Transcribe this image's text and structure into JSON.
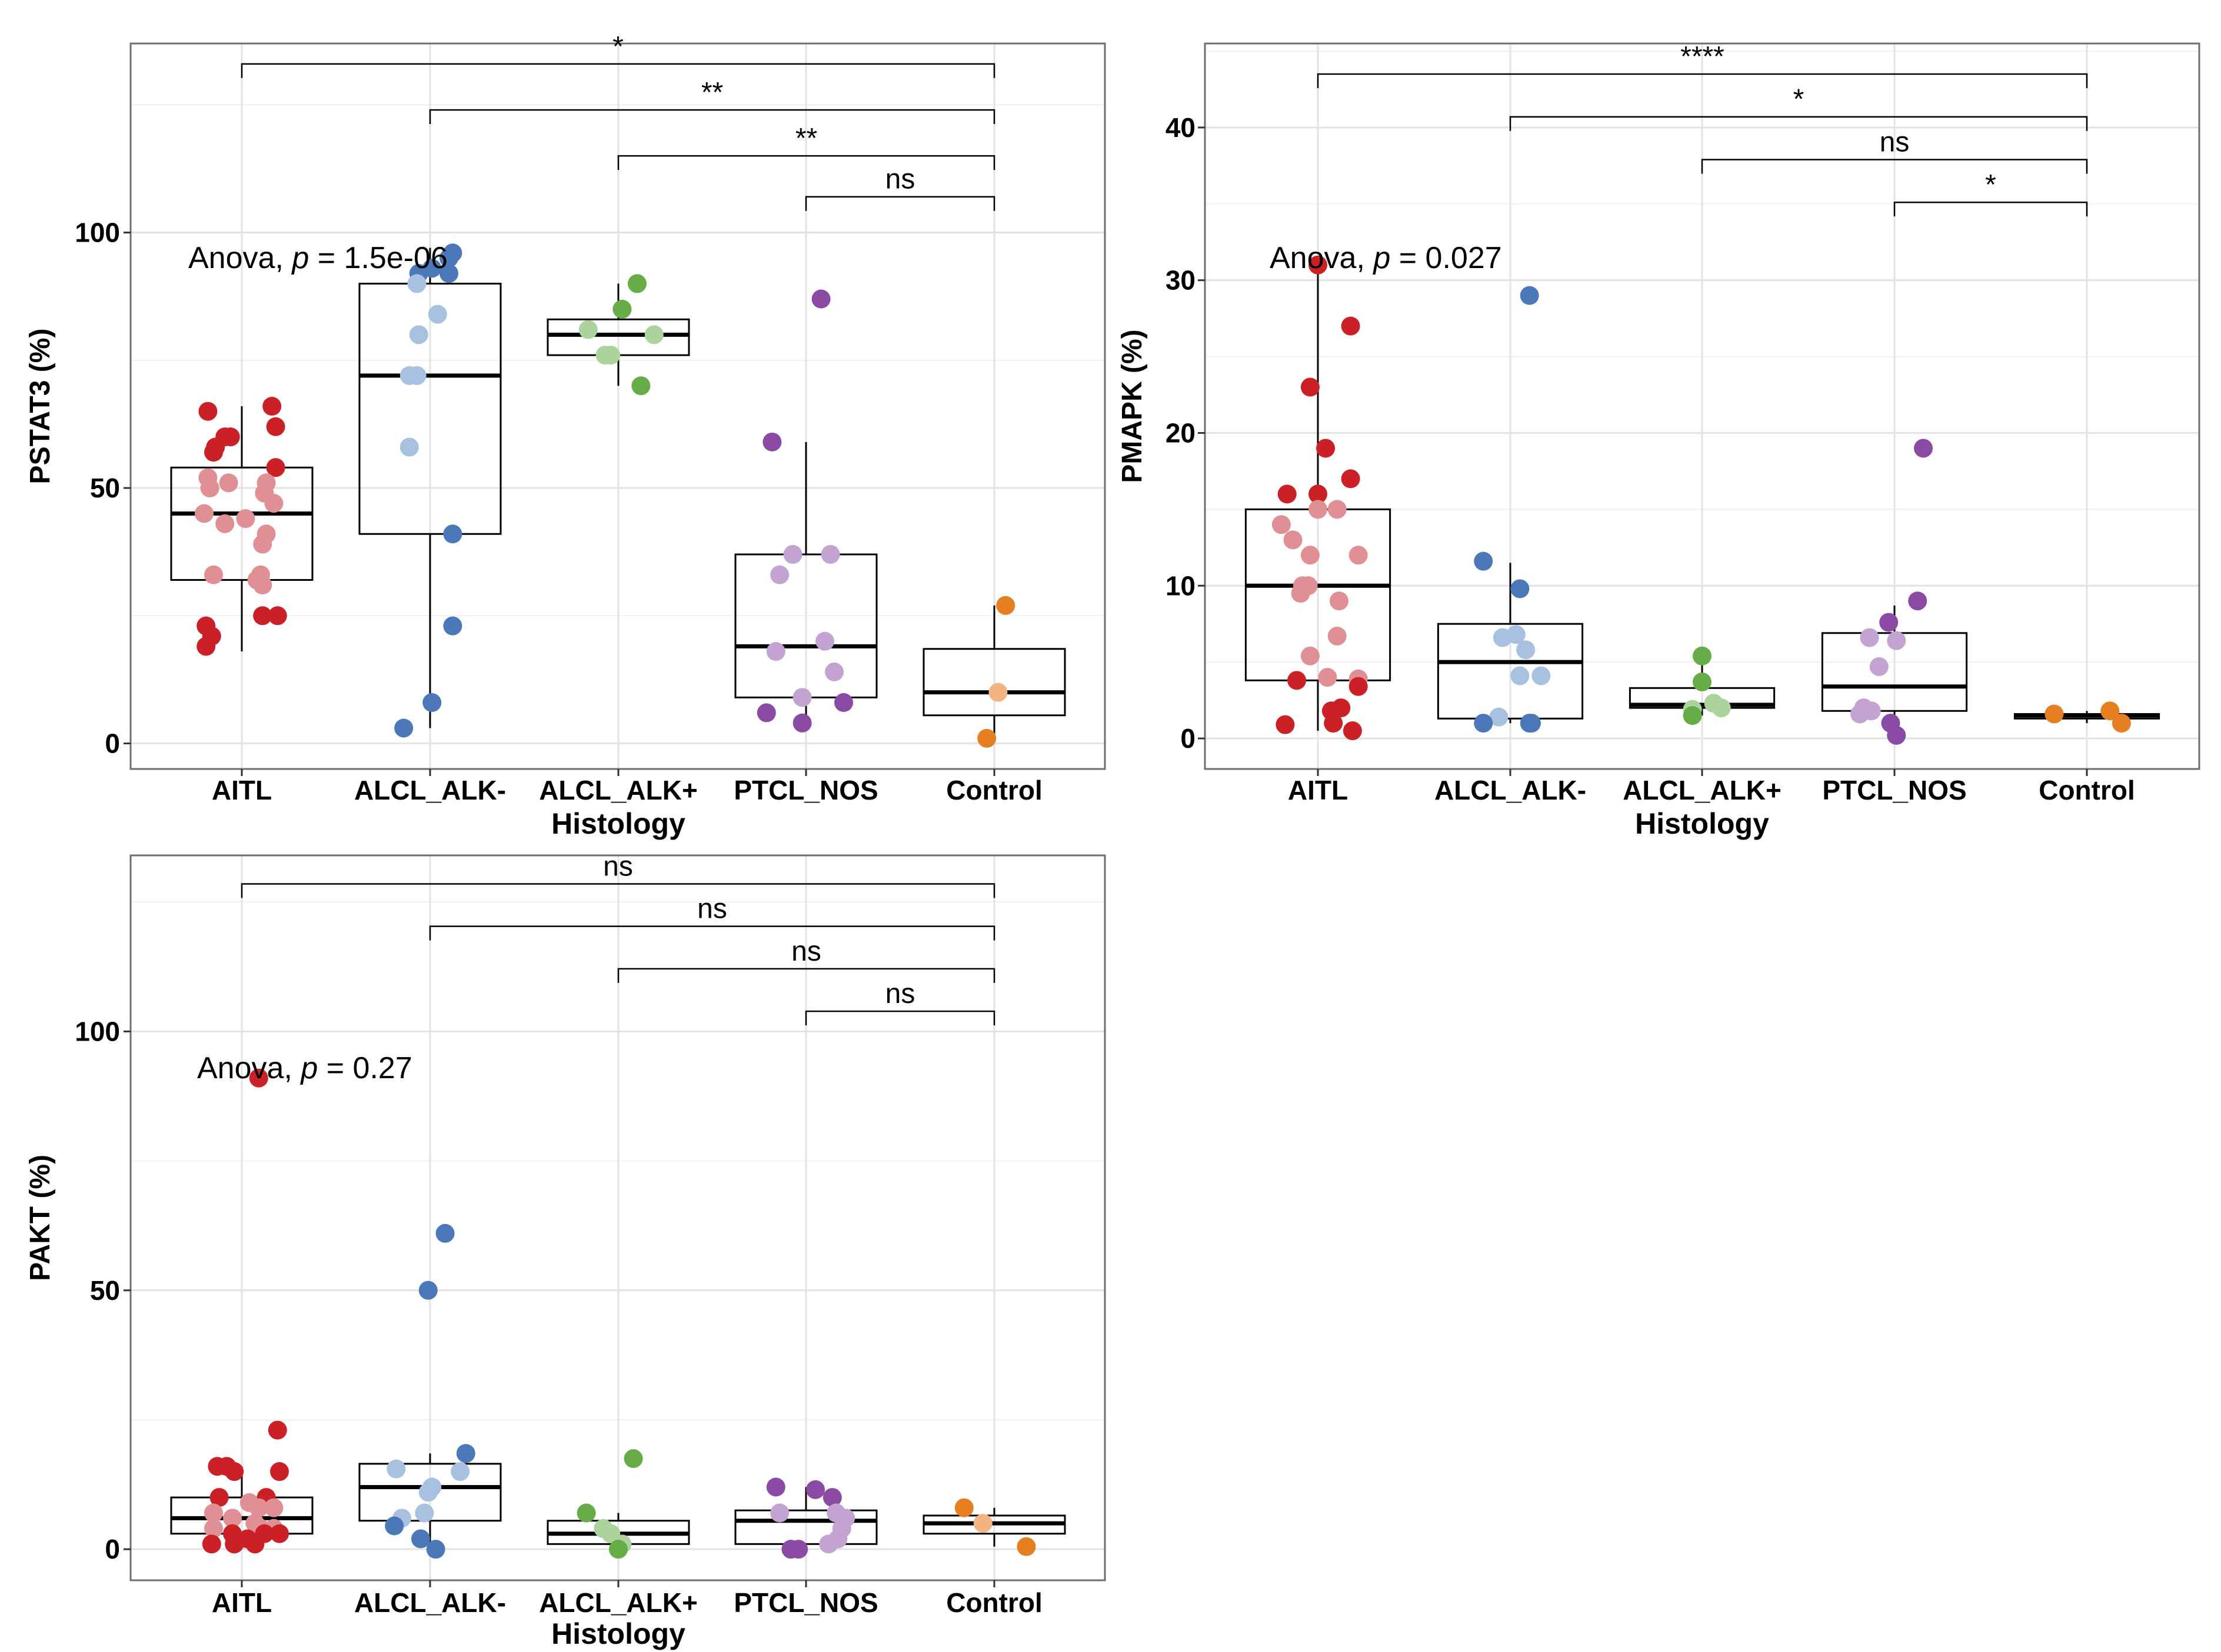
{
  "chart_data": [
    {
      "type": "box-jitter",
      "panel": "top-left",
      "ylabel": "PSTAT3 (%)",
      "xlabel": "Histology",
      "categories": [
        "AITL",
        "ALCL_ALK-",
        "ALCL_ALK+",
        "PTCL_NOS",
        "Control"
      ],
      "ylim": [
        -5,
        137
      ],
      "yticks": [
        0,
        50,
        100
      ],
      "grid": true,
      "anova": {
        "prefix": "Anova, ",
        "p_symbol": "p",
        "text": " = 1.5e-06"
      },
      "boxes": [
        {
          "q1": 32,
          "median": 45,
          "q3": 54,
          "wlo": 18,
          "whi": 66
        },
        {
          "q1": 41,
          "median": 72,
          "q3": 90,
          "wlo": 3,
          "whi": 97
        },
        {
          "q1": 76,
          "median": 80,
          "q3": 83,
          "wlo": 70,
          "whi": 90
        },
        {
          "q1": 9,
          "median": 19,
          "q3": 37,
          "wlo": 3,
          "whi": 59
        },
        {
          "q1": 5.5,
          "median": 10,
          "q3": 18.5,
          "wlo": 1,
          "whi": 27
        }
      ],
      "points": [
        [
          [
            -0.18,
            65,
            "d"
          ],
          [
            0.16,
            66,
            "d"
          ],
          [
            0.18,
            62,
            "d"
          ],
          [
            -0.14,
            58,
            "d"
          ],
          [
            -0.15,
            57,
            "d"
          ],
          [
            -0.06,
            60,
            "d"
          ],
          [
            -0.09,
            60,
            "d"
          ],
          [
            0.18,
            54,
            "d"
          ],
          [
            -0.18,
            52,
            "l"
          ],
          [
            -0.07,
            51,
            "l"
          ],
          [
            0.13,
            51,
            "l"
          ],
          [
            -0.17,
            50,
            "l"
          ],
          [
            0.12,
            49,
            "l"
          ],
          [
            0.17,
            47,
            "l"
          ],
          [
            -0.2,
            45,
            "l"
          ],
          [
            -0.09,
            43,
            "l"
          ],
          [
            0.02,
            44,
            "l"
          ],
          [
            0.13,
            41,
            "l"
          ],
          [
            0.11,
            39,
            "l"
          ],
          [
            -0.15,
            33,
            "l"
          ],
          [
            0.1,
            33,
            "l"
          ],
          [
            0.08,
            32,
            "l"
          ],
          [
            0.11,
            31,
            "l"
          ],
          [
            0.11,
            25,
            "d"
          ],
          [
            0.19,
            25,
            "d"
          ],
          [
            -0.19,
            23,
            "d"
          ],
          [
            -0.16,
            21,
            "d"
          ],
          [
            -0.19,
            19,
            "d"
          ]
        ],
        [
          [
            0.1,
            95,
            "d"
          ],
          [
            0.12,
            96,
            "d"
          ],
          [
            0.01,
            93,
            "d"
          ],
          [
            -0.06,
            92,
            "d"
          ],
          [
            -0.07,
            90,
            "l"
          ],
          [
            0.1,
            92,
            "d"
          ],
          [
            0.04,
            84,
            "l"
          ],
          [
            -0.06,
            80,
            "l"
          ],
          [
            -0.11,
            72,
            "l"
          ],
          [
            -0.07,
            72,
            "l"
          ],
          [
            -0.11,
            58,
            "l"
          ],
          [
            0.12,
            41,
            "d"
          ],
          [
            0.12,
            23,
            "d"
          ],
          [
            0.01,
            8,
            "d"
          ],
          [
            -0.14,
            3,
            "d"
          ]
        ],
        [
          [
            0.1,
            90,
            "d"
          ],
          [
            0.02,
            85,
            "d"
          ],
          [
            -0.16,
            81,
            "l"
          ],
          [
            0.19,
            80,
            "l"
          ],
          [
            -0.07,
            76,
            "l"
          ],
          [
            -0.04,
            76,
            "l"
          ],
          [
            0.12,
            70,
            "d"
          ]
        ],
        [
          [
            0.08,
            87,
            "d"
          ],
          [
            -0.18,
            59,
            "d"
          ],
          [
            -0.07,
            37,
            "l"
          ],
          [
            0.13,
            37,
            "l"
          ],
          [
            -0.14,
            33,
            "l"
          ],
          [
            0.1,
            20,
            "l"
          ],
          [
            -0.16,
            18,
            "l"
          ],
          [
            0.15,
            14,
            "l"
          ],
          [
            -0.02,
            9,
            "l"
          ],
          [
            0.2,
            8,
            "d"
          ],
          [
            -0.21,
            6,
            "d"
          ],
          [
            -0.02,
            4,
            "d"
          ]
        ],
        [
          [
            0.06,
            27,
            "d"
          ],
          [
            0.02,
            10,
            "l"
          ],
          [
            -0.04,
            1,
            "d"
          ]
        ]
      ],
      "brackets": [
        {
          "from": 0,
          "to": 4,
          "y": 133,
          "label": "*"
        },
        {
          "from": 1,
          "to": 4,
          "y": 124,
          "label": "**"
        },
        {
          "from": 2,
          "to": 4,
          "y": 115,
          "label": "**"
        },
        {
          "from": 3,
          "to": 4,
          "y": 107,
          "label": "ns"
        }
      ]
    },
    {
      "type": "box-jitter",
      "panel": "top-right",
      "ylabel": "PMAPK (%)",
      "xlabel": "Histology",
      "categories": [
        "AITL",
        "ALCL_ALK-",
        "ALCL_ALK+",
        "PTCL_NOS",
        "Control"
      ],
      "ylim": [
        -2,
        45.5
      ],
      "yticks": [
        0,
        10,
        20,
        30,
        40
      ],
      "grid": true,
      "anova": {
        "prefix": "Anova, ",
        "p_symbol": "p",
        "text": " = 0.027"
      },
      "boxes": [
        {
          "q1": 3.8,
          "median": 10,
          "q3": 15,
          "wlo": 0.5,
          "whi": 31
        },
        {
          "q1": 1.3,
          "median": 5,
          "q3": 7.5,
          "wlo": 1,
          "whi": 11.5
        },
        {
          "q1": 2,
          "median": 2.2,
          "q3": 3.3,
          "wlo": 1.5,
          "whi": 5.4
        },
        {
          "q1": 1.8,
          "median": 3.4,
          "q3": 6.9,
          "wlo": 0.3,
          "whi": 8.7
        },
        {
          "q1": 1.3,
          "median": 1.5,
          "q3": 1.6,
          "wlo": 1,
          "whi": 1.8
        }
      ],
      "points": [
        [
          [
            0,
            31,
            "d"
          ],
          [
            0.17,
            27,
            "d"
          ],
          [
            -0.04,
            23,
            "d"
          ],
          [
            0.04,
            19,
            "d"
          ],
          [
            -0.16,
            16,
            "d"
          ],
          [
            0,
            16,
            "d"
          ],
          [
            0.17,
            17,
            "d"
          ],
          [
            0.1,
            15,
            "l"
          ],
          [
            0,
            15,
            "l"
          ],
          [
            -0.19,
            14,
            "l"
          ],
          [
            -0.13,
            13,
            "l"
          ],
          [
            -0.04,
            12,
            "l"
          ],
          [
            0.21,
            12,
            "l"
          ],
          [
            -0.08,
            10,
            "l"
          ],
          [
            -0.05,
            10,
            "l"
          ],
          [
            -0.09,
            9.5,
            "l"
          ],
          [
            0.11,
            9,
            "l"
          ],
          [
            0.1,
            6.7,
            "l"
          ],
          [
            -0.04,
            5.4,
            "l"
          ],
          [
            0.05,
            4,
            "l"
          ],
          [
            -0.11,
            3.8,
            "d"
          ],
          [
            0.21,
            3.9,
            "l"
          ],
          [
            0.21,
            3.4,
            "d"
          ],
          [
            0.12,
            2,
            "d"
          ],
          [
            0.07,
            1.8,
            "d"
          ],
          [
            -0.17,
            0.9,
            "d"
          ],
          [
            0.08,
            1,
            "d"
          ],
          [
            0.18,
            0.5,
            "d"
          ]
        ],
        [
          [
            0.1,
            29,
            "d"
          ],
          [
            -0.14,
            11.6,
            "d"
          ],
          [
            0.05,
            9.8,
            "d"
          ],
          [
            0.03,
            6.8,
            "l"
          ],
          [
            -0.04,
            6.6,
            "l"
          ],
          [
            0.08,
            5.8,
            "l"
          ],
          [
            0.05,
            4.1,
            "l"
          ],
          [
            0.16,
            4.1,
            "l"
          ],
          [
            -0.06,
            1.4,
            "l"
          ],
          [
            -0.14,
            1,
            "d"
          ],
          [
            0.1,
            1,
            "d"
          ],
          [
            0.11,
            1,
            "d"
          ]
        ],
        [
          [
            0,
            5.4,
            "d"
          ],
          [
            0,
            3.7,
            "d"
          ],
          [
            0.06,
            2.3,
            "l"
          ],
          [
            0.1,
            2,
            "l"
          ],
          [
            -0.05,
            1.9,
            "l"
          ],
          [
            -0.05,
            1.5,
            "d"
          ]
        ],
        [
          [
            0.15,
            19,
            "d"
          ],
          [
            0.12,
            9,
            "d"
          ],
          [
            -0.03,
            7.6,
            "d"
          ],
          [
            -0.13,
            6.6,
            "l"
          ],
          [
            0.01,
            6.4,
            "l"
          ],
          [
            -0.08,
            4.7,
            "l"
          ],
          [
            -0.16,
            2,
            "l"
          ],
          [
            -0.12,
            1.8,
            "l"
          ],
          [
            -0.18,
            1.6,
            "l"
          ],
          [
            -0.02,
            1,
            "d"
          ],
          [
            0.01,
            0.2,
            "d"
          ]
        ],
        [
          [
            -0.17,
            1.6,
            "d"
          ],
          [
            0.12,
            1.8,
            "d"
          ],
          [
            0.18,
            1,
            "d"
          ]
        ]
      ],
      "brackets": [
        {
          "from": 0,
          "to": 4,
          "y": 43.5,
          "label": "****"
        },
        {
          "from": 1,
          "to": 4,
          "y": 40.7,
          "label": "*"
        },
        {
          "from": 2,
          "to": 4,
          "y": 37.9,
          "label": "ns"
        },
        {
          "from": 3,
          "to": 4,
          "y": 35.1,
          "label": "*"
        }
      ]
    },
    {
      "type": "box-jitter",
      "panel": "bottom-left",
      "ylabel": "PAKT (%)",
      "xlabel": "Histology",
      "categories": [
        "AITL",
        "ALCL_ALK-",
        "ALCL_ALK+",
        "PTCL_NOS",
        "Control"
      ],
      "ylim": [
        -6,
        134
      ],
      "yticks": [
        0,
        50,
        100
      ],
      "grid": true,
      "anova": {
        "prefix": "Anova, ",
        "p_symbol": "p",
        "text": " = 0.27"
      },
      "boxes": [
        {
          "q1": 3,
          "median": 6,
          "q3": 10,
          "wlo": 0,
          "whi": 16
        },
        {
          "q1": 5.5,
          "median": 12,
          "q3": 16.5,
          "wlo": 0,
          "whi": 18.5
        },
        {
          "q1": 1,
          "median": 3,
          "q3": 5.5,
          "wlo": 0,
          "whi": 7
        },
        {
          "q1": 1,
          "median": 5.5,
          "q3": 7.5,
          "wlo": 0,
          "whi": 12
        },
        {
          "q1": 3,
          "median": 5,
          "q3": 6.5,
          "wlo": 0.5,
          "whi": 8
        }
      ],
      "points": [
        [
          [
            0.09,
            91,
            "d"
          ],
          [
            0.19,
            23,
            "d"
          ],
          [
            -0.13,
            16,
            "d"
          ],
          [
            -0.08,
            16,
            "d"
          ],
          [
            0.2,
            15,
            "d"
          ],
          [
            -0.04,
            15,
            "d"
          ],
          [
            -0.12,
            10,
            "d"
          ],
          [
            0.13,
            10,
            "d"
          ],
          [
            0.04,
            9,
            "l"
          ],
          [
            0.17,
            8,
            "l"
          ],
          [
            0.09,
            8,
            "l"
          ],
          [
            -0.15,
            7,
            "l"
          ],
          [
            -0.05,
            6,
            "l"
          ],
          [
            0.07,
            5,
            "l"
          ],
          [
            -0.15,
            4,
            "l"
          ],
          [
            0.1,
            4,
            "l"
          ],
          [
            0.17,
            4,
            "l"
          ],
          [
            0.2,
            3,
            "d"
          ],
          [
            0.12,
            3,
            "d"
          ],
          [
            -0.05,
            3,
            "d"
          ],
          [
            0.03,
            2,
            "d"
          ],
          [
            -0.16,
            1,
            "d"
          ],
          [
            -0.04,
            1,
            "d"
          ],
          [
            0.07,
            1,
            "d"
          ]
        ],
        [
          [
            0.08,
            61,
            "d"
          ],
          [
            -0.01,
            50,
            "d"
          ],
          [
            0.19,
            18.5,
            "d"
          ],
          [
            -0.18,
            15.5,
            "l"
          ],
          [
            0.16,
            15,
            "l"
          ],
          [
            0.01,
            12,
            "l"
          ],
          [
            -0.01,
            11,
            "l"
          ],
          [
            -0.03,
            7,
            "l"
          ],
          [
            -0.15,
            6,
            "l"
          ],
          [
            -0.19,
            4.5,
            "d"
          ],
          [
            -0.05,
            2,
            "d"
          ],
          [
            0.03,
            0,
            "d"
          ]
        ],
        [
          [
            0.08,
            17.5,
            "d"
          ],
          [
            -0.17,
            7,
            "d"
          ],
          [
            -0.08,
            4,
            "l"
          ],
          [
            -0.04,
            3,
            "l"
          ],
          [
            0.02,
            1,
            "l"
          ],
          [
            0,
            0,
            "d"
          ]
        ],
        [
          [
            -0.16,
            12,
            "d"
          ],
          [
            0.05,
            11.5,
            "d"
          ],
          [
            0.14,
            10,
            "d"
          ],
          [
            0.16,
            7,
            "l"
          ],
          [
            -0.14,
            7,
            "l"
          ],
          [
            0.21,
            6,
            "l"
          ],
          [
            0.19,
            4,
            "l"
          ],
          [
            0.17,
            2,
            "l"
          ],
          [
            0.12,
            1,
            "l"
          ],
          [
            -0.04,
            0,
            "d"
          ],
          [
            -0.08,
            0,
            "d"
          ]
        ],
        [
          [
            -0.16,
            8,
            "d"
          ],
          [
            -0.06,
            5,
            "l"
          ],
          [
            0.17,
            0.5,
            "d"
          ]
        ]
      ],
      "brackets": [
        {
          "from": 0,
          "to": 4,
          "y": 128.5,
          "label": "ns"
        },
        {
          "from": 1,
          "to": 4,
          "y": 120.3,
          "label": "ns"
        },
        {
          "from": 2,
          "to": 4,
          "y": 112.1,
          "label": "ns"
        },
        {
          "from": 3,
          "to": 4,
          "y": 103.9,
          "label": "ns"
        }
      ]
    }
  ],
  "colors": {
    "AITL": {
      "dark": "#cc2027",
      "light": "#e09095"
    },
    "ALCL_ALK-": {
      "dark": "#4a78b8",
      "light": "#a9c1e0"
    },
    "ALCL_ALK+": {
      "dark": "#66ad48",
      "light": "#abd39b"
    },
    "PTCL_NOS": {
      "dark": "#8b4aa4",
      "light": "#c2a3d1"
    },
    "Control": {
      "dark": "#e67e22",
      "light": "#f3b484"
    }
  }
}
